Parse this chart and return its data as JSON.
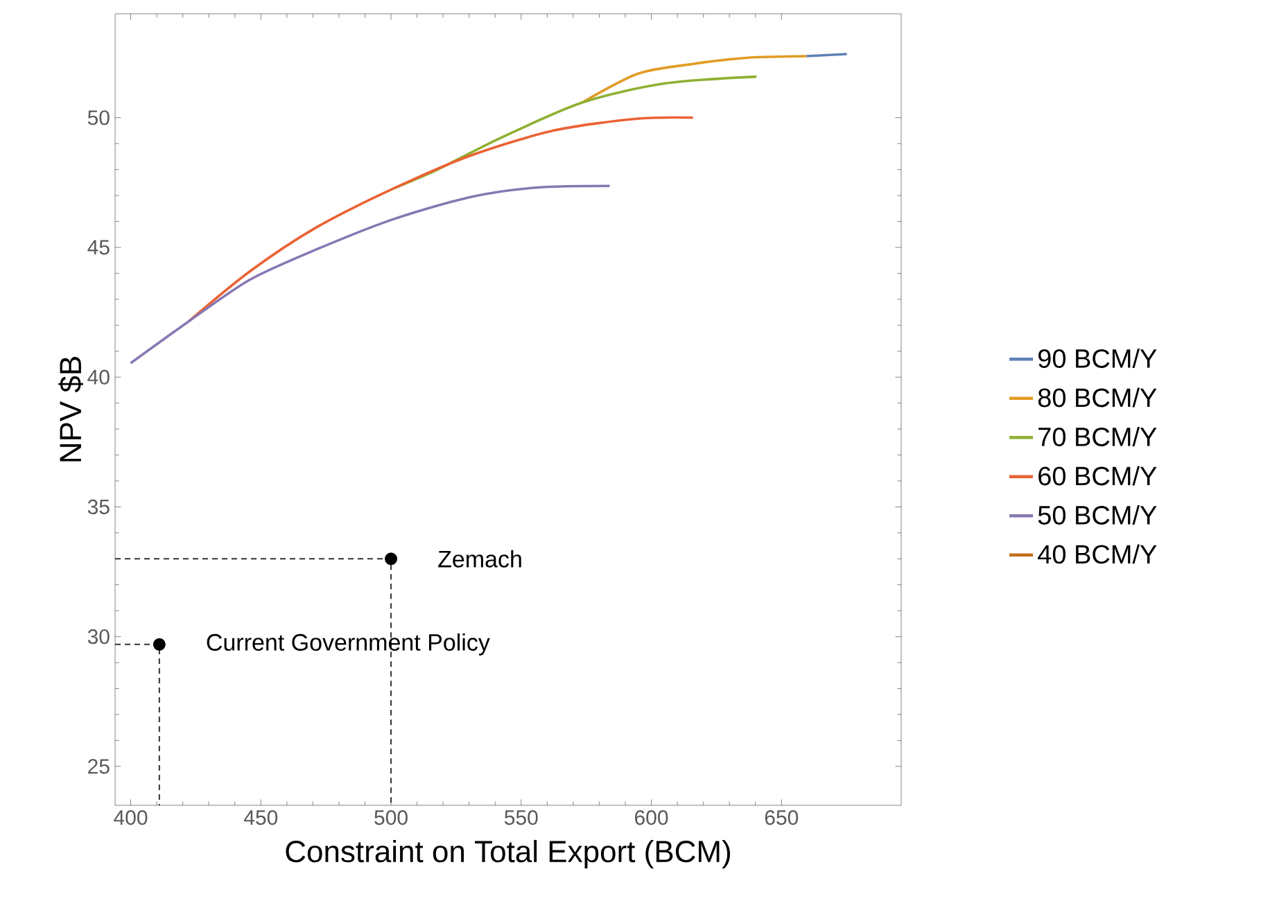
{
  "chart_data": {
    "type": "line",
    "xlabel": "Constraint on Total Export (BCM)",
    "ylabel": "NPV $B",
    "xlim": [
      394,
      696
    ],
    "ylim": [
      23.5,
      54
    ],
    "xticks": [
      400,
      450,
      500,
      550,
      600,
      650
    ],
    "yticks": [
      25,
      30,
      35,
      40,
      45,
      50
    ],
    "grid": false,
    "legend": "right",
    "marker": "none",
    "line_style": "solid",
    "series": [
      {
        "name": "90 BCM/Y",
        "color": "#5e81b5",
        "x": [
          659.6,
          675.1
        ],
        "values": [
          52.37,
          52.45
        ]
      },
      {
        "name": "80 BCM/Y",
        "color": "#e19c24",
        "x": [
          573.4,
          594.7,
          616,
          637.2,
          659.6
        ],
        "values": [
          50.58,
          51.69,
          52.07,
          52.31,
          52.37
        ]
      },
      {
        "name": "70 BCM/Y",
        "color": "#8fb032",
        "x": [
          501,
          518.1,
          541.5,
          573.4,
          605.3,
          640.4
        ],
        "values": [
          47.27,
          48.01,
          49.19,
          50.58,
          51.32,
          51.58
        ]
      },
      {
        "name": "60 BCM/Y",
        "color": "#eb6235",
        "x": [
          422.3,
          445.7,
          471.3,
          501,
          530.9,
          562.8,
          594.7,
          616
        ],
        "values": [
          42.15,
          44.07,
          45.77,
          47.27,
          48.55,
          49.51,
          49.96,
          50.0
        ]
      },
      {
        "name": "50 BCM/Y",
        "color": "#8778b3",
        "x": [
          400,
          422.3,
          445.7,
          471.3,
          501,
          530.9,
          556.4,
          584
        ],
        "values": [
          40.54,
          42.15,
          43.75,
          44.92,
          46.09,
          46.95,
          47.31,
          47.37
        ]
      },
      {
        "name": "40 BCM/Y",
        "color": "#c56e1a"
      },
      {
        "type": "line",
        "line_style": "dashed",
        "color": "#333333",
        "x": [
          394,
          500,
          500
        ],
        "values": [
          33,
          33,
          23.5
        ]
      },
      {
        "type": "line",
        "line_style": "dashed",
        "color": "#333333",
        "x": [
          394,
          411,
          411
        ],
        "values": [
          29.7,
          29.7,
          23.5
        ]
      },
      {
        "type": "scatter",
        "marker": "circle",
        "color": "#000000",
        "x": [
          411,
          500
        ],
        "values": [
          29.7,
          33
        ]
      }
    ],
    "annotations": [
      {
        "text": "Zemach",
        "x": 500,
        "y": 33
      },
      {
        "text": "Current Government Policy",
        "x": 411,
        "y": 29.7
      }
    ]
  }
}
